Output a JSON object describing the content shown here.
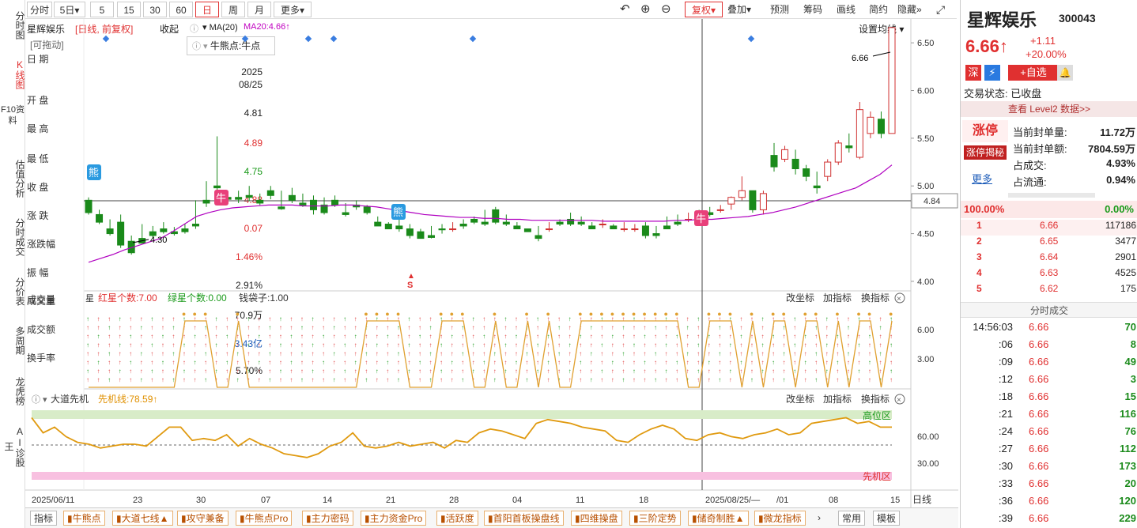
{
  "nav": {
    "items": [
      "分时图",
      "K线图",
      "F10资料",
      "估值分析",
      "分时成交",
      "分价表",
      "多周期",
      "龙虎榜",
      "AI诊股王"
    ],
    "active_index": 1
  },
  "toolbar": {
    "periods": [
      "分时",
      "5日▾",
      "5",
      "15",
      "30",
      "60",
      "日",
      "周",
      "月",
      "更多▾"
    ],
    "active_period": "日",
    "right_items": [
      "复权▾",
      "叠加▾",
      "预测",
      "筹码",
      "画线",
      "简约",
      "隐藏»"
    ]
  },
  "header": {
    "stock_name": "星辉娱乐",
    "mode": "[日线, 前复权]",
    "collapse": "收起",
    "ma_label": "MA(20)",
    "ma20_value": "MA20:4.66↑",
    "indicator_box": "牛熊点:牛点",
    "set_ma": "设置均线"
  },
  "info_panel": {
    "draggable": "[可拖动]",
    "date_label": "日  期",
    "date_year": "2025",
    "date_md": "08/25",
    "open_label": "开  盘",
    "open_value": "4.81",
    "high_label": "最  高",
    "high_value": "4.89",
    "low_label": "最  低",
    "low_value": "4.75",
    "close_label": "收  盘",
    "close_value": "4.88",
    "change_label": "涨  跌",
    "change_value": "0.07",
    "pct_label": "涨跌幅",
    "pct_value": "1.46%",
    "amp_label": "振  幅",
    "amp_value": "2.91%",
    "vol_label": "成交量",
    "vol_value": "70.9万",
    "amt_label": "成交额",
    "amt_value": "3.43亿",
    "turn_label": "换手率",
    "turn_value": "5.70%"
  },
  "main_chart": {
    "price_axis": [
      "6.50",
      "6.00",
      "5.50",
      "5.00",
      "4.50",
      "4.00"
    ],
    "crosshair_price": "4.84",
    "high_mark": "6.66",
    "low_mark": "4.30",
    "signal_bear": "熊",
    "signal_bull": "牛",
    "sell_mark": "S"
  },
  "sub1": {
    "title_red": "红星个数:7.00",
    "title_green": "绿星个数:0.00",
    "title_other": "钱袋子:1.00",
    "actions": [
      "改坐标",
      "加指标",
      "换指标"
    ],
    "axis": [
      "6.00",
      "3.00"
    ],
    "vol_labels": "星"
  },
  "sub2": {
    "name": "大道先机",
    "line_value": "先机线:78.59↑",
    "actions": [
      "改坐标",
      "加指标",
      "换指标"
    ],
    "axis": [
      "60.00",
      "30.00"
    ],
    "high_zone": "高位区",
    "low_zone": "先机区"
  },
  "date_axis": {
    "labels": [
      "2025/06/11",
      "23",
      "30",
      "07",
      "14",
      "21",
      "28",
      "04",
      "11",
      "18",
      "2025/08/25/—",
      "/01",
      "08",
      "15"
    ],
    "period": "日线"
  },
  "bottom_tabs": [
    "指标",
    "牛熊点",
    "大道七线▲",
    "攻守兼备",
    "牛熊点Pro",
    "主力密码",
    "主力资金Pro",
    "活跃度",
    "首阳首板操盘线",
    "四维操盘",
    "三阶定势",
    "储奇制胜▲",
    "微龙指标"
  ],
  "bottom_right": [
    "常用",
    "模板"
  ],
  "quote": {
    "name": "星辉娱乐",
    "code": "300043",
    "price": "6.66↑",
    "change": "+1.11",
    "pct": "+20.00%",
    "tag_market": "深",
    "tag_add": "+自选",
    "status": "交易状态: 已收盘",
    "level2": "查看 Level2 数据>>",
    "limit_up": "涨停",
    "limit_reveal": "涨停揭秘",
    "more": "更多",
    "seal_qty_label": "当前封单量:",
    "seal_qty": "11.72万",
    "seal_amt_label": "当前封单额:",
    "seal_amt": "7804.59万",
    "vol_ratio_label": "占成交:",
    "vol_ratio": "4.93%",
    "float_ratio_label": "占流通:",
    "float_ratio": "0.94%",
    "buy_pct": "100.00%",
    "sell_pct": "0.00%",
    "order_book": [
      {
        "level": "1",
        "price": "6.66",
        "qty": "117186"
      },
      {
        "level": "2",
        "price": "6.65",
        "qty": "3477"
      },
      {
        "level": "3",
        "price": "6.64",
        "qty": "2901"
      },
      {
        "level": "4",
        "price": "6.63",
        "qty": "4525"
      },
      {
        "level": "5",
        "price": "6.62",
        "qty": "175"
      }
    ],
    "ticks_title": "分时成交",
    "ticks": [
      {
        "t": "14:56:03",
        "p": "6.66",
        "v": "70"
      },
      {
        "t": ":06",
        "p": "6.66",
        "v": "8"
      },
      {
        "t": ":09",
        "p": "6.66",
        "v": "49"
      },
      {
        "t": ":12",
        "p": "6.66",
        "v": "3"
      },
      {
        "t": ":18",
        "p": "6.66",
        "v": "15"
      },
      {
        "t": ":21",
        "p": "6.66",
        "v": "116"
      },
      {
        "t": ":24",
        "p": "6.66",
        "v": "76"
      },
      {
        "t": ":27",
        "p": "6.66",
        "v": "112"
      },
      {
        "t": ":30",
        "p": "6.66",
        "v": "173"
      },
      {
        "t": ":33",
        "p": "6.66",
        "v": "20"
      },
      {
        "t": ":36",
        "p": "6.66",
        "v": "120"
      },
      {
        "t": ":39",
        "p": "6.66",
        "v": "229"
      }
    ]
  },
  "chart_data": {
    "type": "candlestick",
    "ma20_values": [
      4.2,
      4.24,
      4.28,
      4.33,
      4.37,
      4.41,
      4.45,
      4.52,
      4.6,
      4.68,
      4.72,
      4.75,
      4.77,
      4.78,
      4.79,
      4.8,
      4.8,
      4.8,
      4.79,
      4.79,
      4.79,
      4.8,
      4.8,
      4.79,
      4.78,
      4.76,
      4.74,
      4.72,
      4.7,
      4.69,
      4.68,
      4.67,
      4.67,
      4.66,
      4.66,
      4.65,
      4.65,
      4.64,
      4.64,
      4.64,
      4.64,
      4.64,
      4.64,
      4.63,
      4.63,
      4.63,
      4.63,
      4.63,
      4.63,
      4.64,
      4.64,
      4.65,
      4.65,
      4.66,
      4.67,
      4.68,
      4.7,
      4.72,
      4.75,
      4.78,
      4.82,
      4.86,
      4.9,
      4.94,
      4.98,
      5.05,
      5.12,
      5.22
    ],
    "candles": [
      [
        4.85,
        4.88,
        4.72,
        4.7
      ],
      [
        4.7,
        4.75,
        4.62,
        4.6
      ],
      [
        4.55,
        4.65,
        4.5,
        4.48
      ],
      [
        4.62,
        4.7,
        4.38,
        4.35
      ],
      [
        4.42,
        4.48,
        4.3,
        4.28
      ],
      [
        4.45,
        4.6,
        4.4,
        4.4
      ],
      [
        4.52,
        4.58,
        4.48,
        4.45
      ],
      [
        4.55,
        4.62,
        4.52,
        4.5
      ],
      [
        4.52,
        4.57,
        4.5,
        4.48
      ],
      [
        4.55,
        4.6,
        4.52,
        4.5
      ],
      [
        4.6,
        4.85,
        4.58,
        4.55
      ],
      [
        4.85,
        5.05,
        4.82,
        4.78
      ],
      [
        5.0,
        5.52,
        4.98,
        4.9
      ],
      [
        4.88,
        4.95,
        4.86,
        4.82
      ],
      [
        4.88,
        4.95,
        4.86,
        4.82
      ],
      [
        4.9,
        5.0,
        4.88,
        4.84
      ],
      [
        4.85,
        4.92,
        4.82,
        4.8
      ],
      [
        4.95,
        5.0,
        4.9,
        4.86
      ],
      [
        4.78,
        4.95,
        4.76,
        4.75
      ],
      [
        4.9,
        4.98,
        4.85,
        4.82
      ],
      [
        4.82,
        4.92,
        4.8,
        4.78
      ],
      [
        4.85,
        4.9,
        4.75,
        4.7
      ],
      [
        4.8,
        4.88,
        4.72,
        4.7
      ],
      [
        4.85,
        4.9,
        4.8,
        4.78
      ],
      [
        4.72,
        4.82,
        4.7,
        4.68
      ],
      [
        4.8,
        4.85,
        4.78,
        4.75
      ],
      [
        4.78,
        4.8,
        4.72,
        4.7
      ],
      [
        4.62,
        4.68,
        4.58,
        4.58
      ],
      [
        4.6,
        4.62,
        4.55,
        4.55
      ],
      [
        4.58,
        4.65,
        4.55,
        4.52
      ],
      [
        4.55,
        4.6,
        4.48,
        4.45
      ],
      [
        4.52,
        4.55,
        4.45,
        4.45
      ],
      [
        4.48,
        4.58,
        4.46,
        4.45
      ],
      [
        4.55,
        4.6,
        4.54,
        4.5
      ],
      [
        4.55,
        4.62,
        4.55,
        4.52
      ],
      [
        4.6,
        4.65,
        4.58,
        4.55
      ],
      [
        4.65,
        4.68,
        4.62,
        4.6
      ],
      [
        4.62,
        4.75,
        4.6,
        4.58
      ],
      [
        4.75,
        4.78,
        4.62,
        4.6
      ],
      [
        4.62,
        4.7,
        4.6,
        4.58
      ],
      [
        4.58,
        4.62,
        4.55,
        4.55
      ],
      [
        4.55,
        4.55,
        4.52,
        4.52
      ],
      [
        4.48,
        4.58,
        4.45,
        4.42
      ],
      [
        4.55,
        4.62,
        4.55,
        4.52
      ],
      [
        4.62,
        4.65,
        4.6,
        4.58
      ],
      [
        4.65,
        4.72,
        4.6,
        4.58
      ],
      [
        4.62,
        4.68,
        4.6,
        4.58
      ],
      [
        4.58,
        4.62,
        4.55,
        4.55
      ],
      [
        4.6,
        4.65,
        4.6,
        4.56
      ],
      [
        4.58,
        4.6,
        4.55,
        4.55
      ],
      [
        4.55,
        4.62,
        4.55,
        4.52
      ],
      [
        4.55,
        4.6,
        4.55,
        4.52
      ],
      [
        4.58,
        4.62,
        4.48,
        4.45
      ],
      [
        4.5,
        4.58,
        4.48,
        4.45
      ],
      [
        4.58,
        4.68,
        4.55,
        4.55
      ],
      [
        4.62,
        4.7,
        4.6,
        4.58
      ],
      [
        4.65,
        4.72,
        4.65,
        4.62
      ],
      [
        4.7,
        4.75,
        4.68,
        4.65
      ],
      [
        4.72,
        4.78,
        4.7,
        4.68
      ],
      [
        4.75,
        4.8,
        4.75,
        4.72
      ],
      [
        4.81,
        4.89,
        4.88,
        4.75
      ],
      [
        4.88,
        5.1,
        4.95,
        4.85
      ],
      [
        4.95,
        4.92,
        4.75,
        4.72
      ],
      [
        4.75,
        4.95,
        4.92,
        4.7
      ],
      [
        5.32,
        5.45,
        5.2,
        5.15
      ],
      [
        5.28,
        5.42,
        5.38,
        5.25
      ],
      [
        5.28,
        5.38,
        5.18,
        5.12
      ],
      [
        5.18,
        5.22,
        5.1,
        5.05
      ],
      [
        5.0,
        5.15,
        4.98,
        4.92
      ],
      [
        5.1,
        5.28,
        5.25,
        5.05
      ],
      [
        5.25,
        5.48,
        5.45,
        5.22
      ],
      [
        5.42,
        5.55,
        5.4,
        5.35
      ],
      [
        5.3,
        5.88,
        5.8,
        5.28
      ],
      [
        5.55,
        5.78,
        5.72,
        5.5
      ],
      [
        5.7,
        5.78,
        5.55,
        5.5
      ],
      [
        5.55,
        6.66,
        6.66,
        5.55
      ]
    ],
    "ylim": [
      3.9,
      6.75
    ],
    "series": [
      {
        "name": "MA20",
        "values": "ma20_values"
      }
    ]
  }
}
